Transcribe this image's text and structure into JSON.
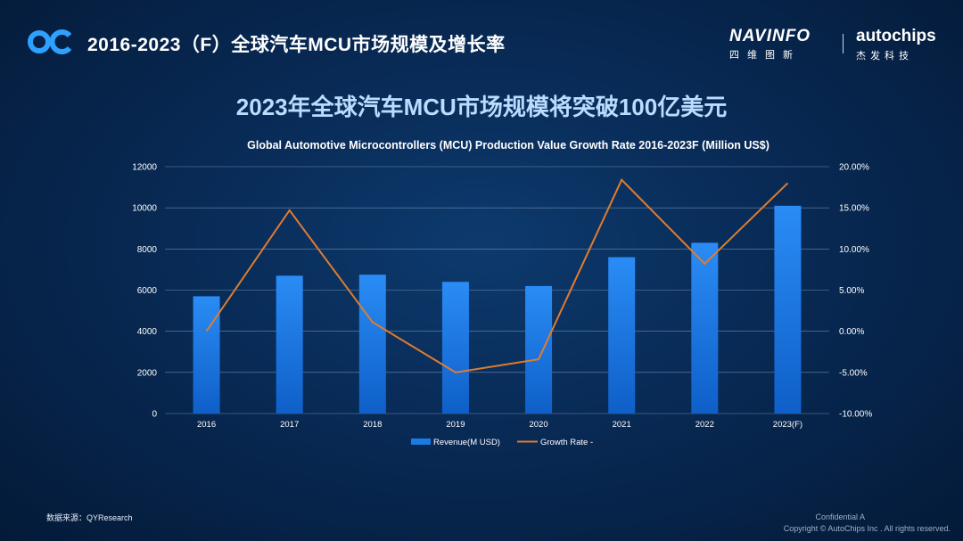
{
  "header": {
    "title": "2016-2023（F）全球汽车MCU市场规模及增长率",
    "navinfo_name": "NAVINFO",
    "navinfo_cn": "四维图新",
    "autochips_name": "autochips",
    "autochips_cn": "杰发科技"
  },
  "headline": "2023年全球汽车MCU市场规模将突破100亿美元",
  "chart_data": {
    "type": "bar",
    "title": "Global Automotive Microcontrollers (MCU) Production Value Growth Rate 2016-2023F  (Million US$)",
    "categories": [
      "2016",
      "2017",
      "2018",
      "2019",
      "2020",
      "2021",
      "2022",
      "2023(F)"
    ],
    "series": [
      {
        "name": "Revenue(M USD)",
        "type": "bar",
        "axis": "left",
        "values": [
          5700,
          6700,
          6750,
          6400,
          6200,
          7600,
          8300,
          10100
        ],
        "color": "#1a7be0"
      },
      {
        "name": "Growth Rate -",
        "type": "line",
        "axis": "right",
        "values": [
          0.0,
          14.7,
          1.1,
          -5.0,
          -3.4,
          18.4,
          8.2,
          18.0
        ],
        "color": "#e07c2e"
      }
    ],
    "y_left": {
      "min": 0,
      "max": 12000,
      "ticks": [
        "0",
        "2000",
        "4000",
        "6000",
        "8000",
        "10000",
        "12000"
      ]
    },
    "y_right": {
      "min": -10,
      "max": 20,
      "ticks": [
        "-10.00%",
        "-5.00%",
        "0.00%",
        "5.00%",
        "10.00%",
        "15.00%",
        "20.00%"
      ]
    },
    "grid": true,
    "legend_position": "bottom"
  },
  "footer": {
    "source": "数据来源：QYResearch",
    "confidential": "Confidential A",
    "copyright": "Copyright © AutoChips Inc . All rights reserved."
  }
}
